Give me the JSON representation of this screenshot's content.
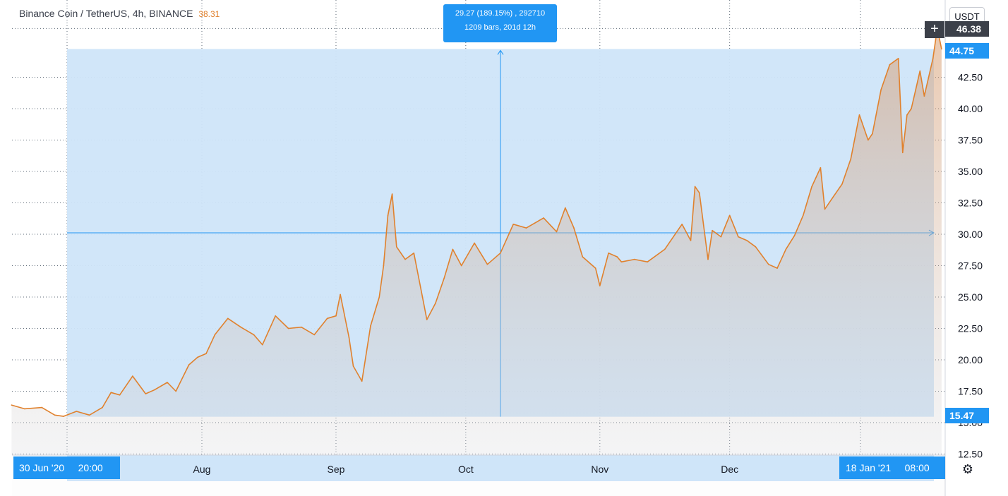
{
  "header": {
    "symbol": "Binance Coin / TetherUS",
    "interval": "4h",
    "exchange": "BINANCE",
    "last_value": "38.31"
  },
  "unit_button": "USDT",
  "measure_tooltip": {
    "line1": "29.27 (189.15%) , 292710",
    "line2": "1209 bars, 201d 12h"
  },
  "price_labels": {
    "current": "46.38",
    "range_top": "44.75",
    "range_bottom": "15.47"
  },
  "date_labels": {
    "left_date": "30 Jun '20",
    "left_time": "20:00",
    "right_date": "18 Jan '21",
    "right_time": "08:00"
  },
  "icons": {
    "plus": "plus-icon",
    "settings": "gear-icon"
  },
  "colors": {
    "line": "#e0812d",
    "measure": "#2196f3",
    "measure_fill": "#cfe5f9",
    "area_fill": "#d2d4d9",
    "grid": "#5f6b78",
    "price_tag": "#3c4049"
  },
  "chart_data": {
    "type": "area",
    "title": "Binance Coin / TetherUS",
    "xlabel": "",
    "ylabel": "",
    "ylim": [
      12.5,
      46.5
    ],
    "grid": true,
    "x_ticks": [
      {
        "label": "Aug",
        "date": "2020-08-01"
      },
      {
        "label": "Sep",
        "date": "2020-09-01"
      },
      {
        "label": "Oct",
        "date": "2020-10-01"
      },
      {
        "label": "Nov",
        "date": "2020-11-01"
      },
      {
        "label": "Dec",
        "date": "2020-12-01"
      }
    ],
    "y_ticks": [
      "12.50",
      "15.00",
      "17.50",
      "20.00",
      "22.50",
      "25.00",
      "27.50",
      "30.00",
      "32.50",
      "35.00",
      "37.50",
      "40.00",
      "42.50"
    ],
    "series": [
      {
        "x": [
          "2020-06-18",
          "2020-06-21",
          "2020-06-25",
          "2020-06-28",
          "2020-06-30",
          "2020-07-03",
          "2020-07-06",
          "2020-07-09",
          "2020-07-11",
          "2020-07-13",
          "2020-07-16",
          "2020-07-19",
          "2020-07-21",
          "2020-07-24",
          "2020-07-26",
          "2020-07-29",
          "2020-07-31",
          "2020-08-02",
          "2020-08-04",
          "2020-08-07",
          "2020-08-10",
          "2020-08-13",
          "2020-08-15",
          "2020-08-18",
          "2020-08-21",
          "2020-08-24",
          "2020-08-27",
          "2020-08-30",
          "2020-09-01",
          "2020-09-02",
          "2020-09-04",
          "2020-09-05",
          "2020-09-07",
          "2020-09-09",
          "2020-09-11",
          "2020-09-12",
          "2020-09-13",
          "2020-09-14",
          "2020-09-15",
          "2020-09-17",
          "2020-09-19",
          "2020-09-21",
          "2020-09-22",
          "2020-09-24",
          "2020-09-26",
          "2020-09-28",
          "2020-09-30",
          "2020-10-03",
          "2020-10-06",
          "2020-10-09",
          "2020-10-12",
          "2020-10-15",
          "2020-10-19",
          "2020-10-22",
          "2020-10-24",
          "2020-10-26",
          "2020-10-28",
          "2020-10-31",
          "2020-11-01",
          "2020-11-03",
          "2020-11-05",
          "2020-11-06",
          "2020-11-09",
          "2020-11-12",
          "2020-11-16",
          "2020-11-20",
          "2020-11-22",
          "2020-11-23",
          "2020-11-24",
          "2020-11-26",
          "2020-11-27",
          "2020-11-29",
          "2020-12-01",
          "2020-12-03",
          "2020-12-05",
          "2020-12-07",
          "2020-12-10",
          "2020-12-12",
          "2020-12-14",
          "2020-12-16",
          "2020-12-18",
          "2020-12-20",
          "2020-12-22",
          "2020-12-23",
          "2020-12-25",
          "2020-12-27",
          "2020-12-29",
          "2020-12-31",
          "2021-01-02",
          "2021-01-03",
          "2021-01-05",
          "2021-01-07",
          "2021-01-09",
          "2021-01-10",
          "2021-01-11",
          "2021-01-12",
          "2021-01-13",
          "2021-01-14",
          "2021-01-15",
          "2021-01-17",
          "2021-01-18",
          "2021-01-19"
        ],
        "y": [
          16.4,
          16.1,
          16.2,
          15.6,
          15.5,
          15.9,
          15.6,
          16.2,
          17.4,
          17.2,
          18.7,
          17.3,
          17.6,
          18.2,
          17.5,
          19.6,
          20.2,
          20.5,
          22.0,
          23.3,
          22.6,
          22.0,
          21.2,
          23.5,
          22.5,
          22.6,
          22.0,
          23.3,
          23.5,
          25.2,
          21.8,
          19.5,
          18.3,
          22.7,
          25.0,
          27.5,
          31.5,
          33.2,
          29.0,
          28.0,
          28.5,
          25.0,
          23.2,
          24.5,
          26.5,
          28.8,
          27.5,
          29.3,
          27.6,
          28.5,
          30.8,
          30.5,
          31.3,
          30.2,
          32.1,
          30.5,
          28.2,
          27.3,
          25.9,
          28.5,
          28.2,
          27.8,
          28.0,
          27.8,
          28.8,
          30.8,
          29.5,
          33.8,
          33.3,
          28.0,
          30.3,
          29.8,
          31.5,
          29.8,
          29.5,
          29.0,
          27.6,
          27.3,
          28.8,
          29.9,
          31.5,
          33.8,
          35.3,
          32.0,
          33.0,
          34.0,
          36.0,
          39.5,
          37.5,
          38.0,
          41.5,
          43.5,
          44.0,
          36.5,
          39.5,
          40.0,
          41.5,
          43.0,
          41.0,
          44.0,
          46.4,
          44.75
        ]
      }
    ],
    "measure_range": {
      "start_date": "2020-06-30",
      "end_date": "2021-01-18",
      "low": 15.47,
      "high": 44.75,
      "mid": 30.11
    }
  }
}
